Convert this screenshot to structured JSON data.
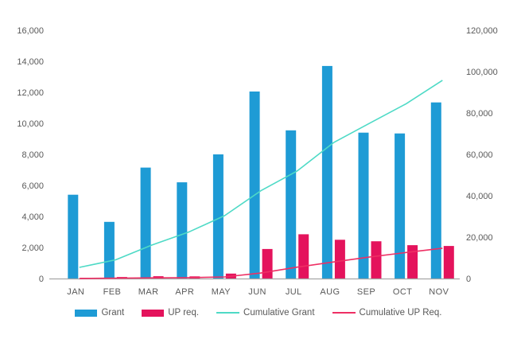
{
  "chart_data": {
    "type": "combo",
    "title": "",
    "categories": [
      "JAN",
      "FEB",
      "MAR",
      "APR",
      "MAY",
      "JUN",
      "JUL",
      "AUG",
      "SEP",
      "OCT",
      "NOV"
    ],
    "series": [
      {
        "name": "Grant",
        "type": "bar",
        "axis": "left",
        "color": "#1e9bd5",
        "values": [
          5400,
          3650,
          7150,
          6200,
          8000,
          12050,
          9550,
          13700,
          9400,
          9350,
          11350
        ]
      },
      {
        "name": "UP req.",
        "type": "bar",
        "axis": "left",
        "color": "#e4135c",
        "values": [
          50,
          100,
          150,
          140,
          320,
          1900,
          2850,
          2500,
          2400,
          2150,
          2100
        ]
      },
      {
        "name": "Cumulative Grant",
        "type": "line",
        "axis": "right",
        "color": "#4edac6",
        "values": [
          5400,
          9050,
          16200,
          22400,
          30400,
          42450,
          52000,
          65700,
          75100,
          84450,
          95800
        ]
      },
      {
        "name": "Cumulative UP Req.",
        "type": "line",
        "axis": "right",
        "color": "#ee2f64",
        "values": [
          50,
          150,
          300,
          440,
          760,
          2660,
          5510,
          8010,
          10410,
          12560,
          14660
        ]
      }
    ],
    "left_axis": {
      "min": 0,
      "max": 16000,
      "tick_step": 2000,
      "tick_labels": [
        "0",
        "2,000",
        "4,000",
        "6,000",
        "8,000",
        "10,000",
        "12,000",
        "14,000",
        "16,000"
      ]
    },
    "right_axis": {
      "min": 0,
      "max": 120000,
      "tick_step": 20000,
      "tick_labels": [
        "0",
        "20,000",
        "40,000",
        "60,000",
        "80,000",
        "100,000",
        "120,000"
      ]
    },
    "legend": {
      "position": "bottom",
      "items": [
        "Grant",
        "UP req.",
        "Cumulative Grant",
        "Cumulative UP Req."
      ]
    },
    "grid": false,
    "styles": {
      "text_color": "#595959",
      "axis_line_color": "#a6a6a6",
      "background": "#ffffff"
    }
  }
}
